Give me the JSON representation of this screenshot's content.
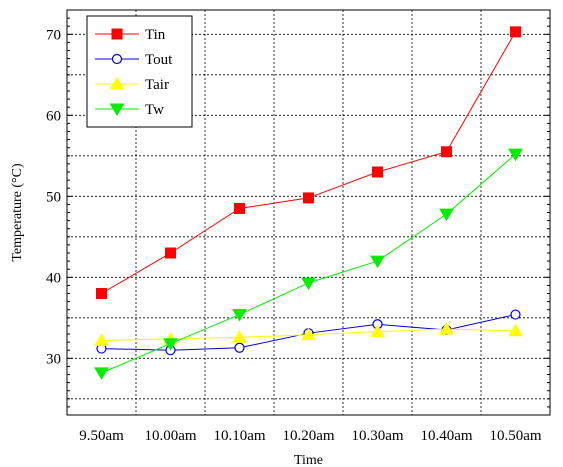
{
  "chart_data": {
    "type": "line",
    "title": "",
    "xlabel": "Time",
    "ylabel": "Temperature (°C)",
    "categories": [
      "9.50am",
      "10.00am",
      "10.10am",
      "10.20am",
      "10.30am",
      "10.40am",
      "10.50am"
    ],
    "ylim": [
      23,
      73
    ],
    "yticks": [
      30,
      40,
      50,
      60,
      70
    ],
    "grid": true,
    "legend_position": "top-left",
    "series": [
      {
        "name": "Tin",
        "color": "#ff0000",
        "marker": "square",
        "filled": true,
        "values": [
          38.0,
          43.0,
          48.5,
          49.8,
          53.0,
          55.5,
          70.3
        ]
      },
      {
        "name": "Tout",
        "color": "#0000cc",
        "marker": "circle",
        "filled": false,
        "values": [
          31.2,
          31.0,
          31.3,
          33.1,
          34.2,
          33.5,
          35.4
        ]
      },
      {
        "name": "Tair",
        "color": "#ffff00",
        "marker": "triangle-up",
        "filled": true,
        "values": [
          32.2,
          32.4,
          32.6,
          32.9,
          33.3,
          33.6,
          33.4
        ]
      },
      {
        "name": "Tw",
        "color": "#00ee00",
        "marker": "triangle-down",
        "filled": true,
        "values": [
          28.2,
          31.8,
          35.4,
          39.3,
          42.0,
          47.8,
          55.2
        ]
      }
    ]
  }
}
